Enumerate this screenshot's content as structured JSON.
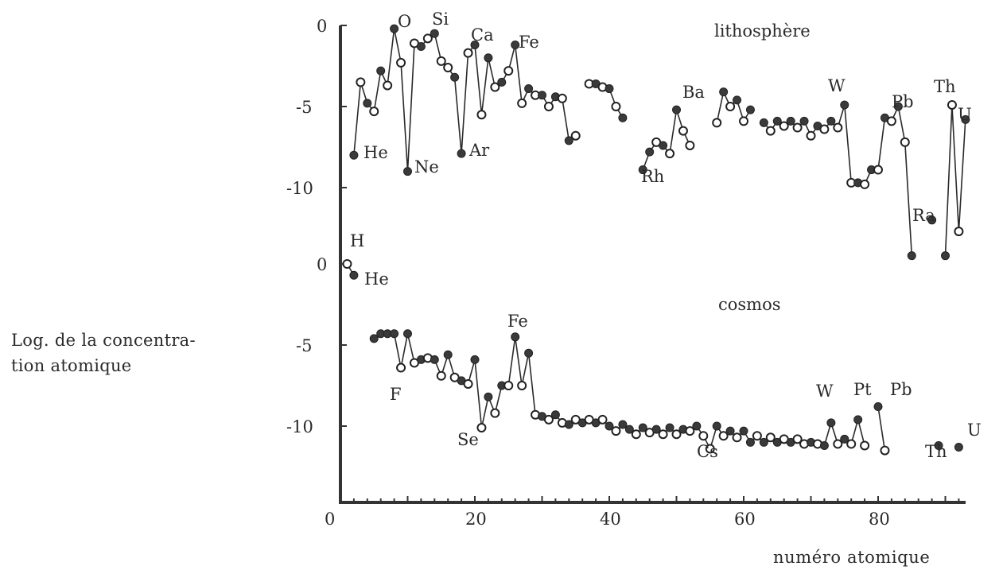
{
  "chart_data": {
    "type": "line",
    "xlabel": "numéro atomique",
    "ylabel_line1": "Log. de la concentra-",
    "ylabel_line2": "tion atomique",
    "xlim": [
      0,
      93
    ],
    "x_ticks": [
      0,
      20,
      40,
      60,
      80
    ],
    "panels": [
      {
        "name": "lithosphère",
        "ylim": [
          -10,
          0
        ],
        "y_ticks": [
          0,
          -5,
          -10
        ],
        "y_tick_labels": [
          "0",
          "-5",
          "-10"
        ],
        "points": [
          [
            2,
            -8.0,
            1
          ],
          [
            3,
            -3.5,
            0
          ],
          [
            4,
            -4.8,
            1
          ],
          [
            5,
            -5.3,
            0
          ],
          [
            6,
            -2.8,
            1
          ],
          [
            7,
            -3.7,
            0
          ],
          [
            8,
            -0.2,
            1
          ],
          [
            9,
            -2.3,
            0
          ],
          [
            10,
            -9.0,
            1
          ],
          [
            11,
            -1.1,
            0
          ],
          [
            12,
            -1.3,
            1
          ],
          [
            13,
            -0.8,
            0
          ],
          [
            14,
            -0.5,
            1
          ],
          [
            15,
            -2.2,
            0
          ],
          [
            16,
            -2.6,
            0
          ],
          [
            17,
            -3.2,
            1
          ],
          [
            18,
            -7.9,
            1
          ],
          [
            19,
            -1.7,
            0
          ],
          [
            20,
            -1.2,
            1
          ],
          [
            21,
            -5.5,
            0
          ],
          [
            22,
            -2.0,
            1
          ],
          [
            23,
            -3.8,
            0
          ],
          [
            24,
            -3.5,
            1
          ],
          [
            25,
            -2.8,
            0
          ],
          [
            26,
            -1.2,
            1
          ],
          [
            27,
            -4.8,
            0
          ],
          [
            28,
            -3.9,
            1
          ],
          [
            29,
            -4.3,
            0
          ],
          [
            30,
            -4.3,
            1
          ],
          [
            31,
            -5.0,
            0
          ],
          [
            32,
            -4.4,
            1
          ],
          [
            33,
            -4.5,
            0
          ],
          [
            34,
            -7.1,
            1
          ],
          [
            35,
            -6.8,
            0
          ],
          [
            37,
            -3.6,
            0
          ],
          [
            38,
            -3.6,
            1
          ],
          [
            39,
            -3.8,
            0
          ],
          [
            40,
            -3.9,
            1
          ],
          [
            41,
            -5.0,
            0
          ],
          [
            42,
            -5.7,
            1
          ],
          [
            45,
            -8.9,
            1
          ],
          [
            46,
            -7.8,
            1
          ],
          [
            47,
            -7.2,
            0
          ],
          [
            48,
            -7.4,
            1
          ],
          [
            49,
            -7.9,
            0
          ],
          [
            50,
            -5.2,
            1
          ],
          [
            51,
            -6.5,
            0
          ],
          [
            52,
            -7.4,
            0
          ],
          [
            56,
            -6.0,
            0
          ],
          [
            57,
            -4.1,
            1
          ],
          [
            58,
            -5.0,
            0
          ],
          [
            59,
            -4.6,
            1
          ],
          [
            60,
            -5.9,
            0
          ],
          [
            61,
            -5.2,
            1
          ],
          [
            63,
            -6.0,
            1
          ],
          [
            64,
            -6.5,
            0
          ],
          [
            65,
            -5.9,
            1
          ],
          [
            66,
            -6.2,
            0
          ],
          [
            67,
            -5.9,
            1
          ],
          [
            68,
            -6.3,
            0
          ],
          [
            69,
            -5.9,
            1
          ],
          [
            70,
            -6.8,
            0
          ],
          [
            71,
            -6.2,
            1
          ],
          [
            72,
            -6.4,
            0
          ],
          [
            73,
            -5.9,
            1
          ],
          [
            74,
            -6.3,
            0
          ],
          [
            75,
            -4.9,
            1
          ],
          [
            76,
            -9.7,
            0
          ],
          [
            77,
            -9.7,
            1
          ],
          [
            78,
            -9.8,
            0
          ],
          [
            79,
            -8.9,
            1
          ],
          [
            80,
            -8.9,
            0
          ],
          [
            81,
            -5.7,
            1
          ],
          [
            82,
            -5.9,
            0
          ],
          [
            83,
            -5.0,
            1
          ],
          [
            84,
            -7.2,
            0
          ],
          [
            85,
            -14.2,
            1
          ],
          [
            88,
            -12.0,
            1
          ],
          [
            90,
            -14.2,
            1
          ],
          [
            91,
            -4.9,
            0
          ],
          [
            92,
            -12.7,
            0
          ],
          [
            93,
            -5.8,
            1
          ]
        ],
        "gaps_after": [
          35,
          42,
          52,
          61,
          85,
          88
        ],
        "labels": [
          "O",
          "Si",
          "Ca",
          "Fe",
          "He",
          "Ne",
          "Ar",
          "Rh",
          "Ba",
          "W",
          "Pb",
          "Th",
          "U",
          "Ra"
        ]
      },
      {
        "name": "cosmos",
        "ylim": [
          -10,
          0
        ],
        "y_ticks": [
          0,
          -5,
          -10
        ],
        "y_tick_labels": [
          "0",
          "-5",
          "-10"
        ],
        "points": [
          [
            1,
            0.0,
            0
          ],
          [
            2,
            -0.7,
            1
          ],
          [
            5,
            -4.6,
            1
          ],
          [
            6,
            -4.3,
            1
          ],
          [
            7,
            -4.3,
            1
          ],
          [
            8,
            -4.3,
            1
          ],
          [
            9,
            -6.4,
            0
          ],
          [
            10,
            -4.3,
            1
          ],
          [
            11,
            -6.1,
            0
          ],
          [
            12,
            -5.9,
            1
          ],
          [
            13,
            -5.8,
            0
          ],
          [
            14,
            -5.9,
            1
          ],
          [
            15,
            -6.9,
            0
          ],
          [
            16,
            -5.6,
            1
          ],
          [
            17,
            -7.0,
            0
          ],
          [
            18,
            -7.2,
            1
          ],
          [
            19,
            -7.4,
            0
          ],
          [
            20,
            -5.9,
            1
          ],
          [
            21,
            -10.1,
            0
          ],
          [
            22,
            -8.2,
            1
          ],
          [
            23,
            -9.2,
            0
          ],
          [
            24,
            -7.5,
            1
          ],
          [
            25,
            -7.5,
            0
          ],
          [
            26,
            -4.5,
            1
          ],
          [
            27,
            -7.5,
            0
          ],
          [
            28,
            -5.5,
            1
          ],
          [
            29,
            -9.3,
            0
          ],
          [
            30,
            -9.4,
            1
          ],
          [
            31,
            -9.6,
            0
          ],
          [
            32,
            -9.3,
            1
          ],
          [
            33,
            -9.8,
            0
          ],
          [
            34,
            -9.9,
            1
          ],
          [
            35,
            -9.6,
            0
          ],
          [
            36,
            -9.8,
            1
          ],
          [
            37,
            -9.6,
            0
          ],
          [
            38,
            -9.8,
            1
          ],
          [
            39,
            -9.6,
            0
          ],
          [
            40,
            -10.0,
            1
          ],
          [
            41,
            -10.3,
            0
          ],
          [
            42,
            -9.9,
            1
          ]
        ],
        "gaps_after": [
          2
        ],
        "labels": [
          "H",
          "He",
          "F",
          "Se",
          "Fe",
          "Cs",
          "W",
          "Pt",
          "Pb",
          "Th",
          "U"
        ]
      }
    ],
    "extra_cosmos": [
      [
        43,
        -10.2,
        1
      ],
      [
        44,
        -10.5,
        0
      ],
      [
        45,
        -10.1,
        1
      ],
      [
        46,
        -10.4,
        0
      ],
      [
        47,
        -10.2,
        1
      ],
      [
        48,
        -10.5,
        0
      ],
      [
        49,
        -10.1,
        1
      ],
      [
        50,
        -10.5,
        0
      ],
      [
        51,
        -10.2,
        1
      ],
      [
        52,
        -10.3,
        0
      ],
      [
        53,
        -10.0,
        1
      ],
      [
        54,
        -10.6,
        0
      ],
      [
        55,
        -11.4,
        0
      ],
      [
        56,
        -10.0,
        1
      ],
      [
        57,
        -10.6,
        0
      ],
      [
        58,
        -10.3,
        1
      ],
      [
        59,
        -10.7,
        0
      ],
      [
        60,
        -10.3,
        1
      ],
      [
        61,
        -11.0,
        1
      ],
      [
        62,
        -10.6,
        0
      ],
      [
        63,
        -11.0,
        1
      ],
      [
        64,
        -10.7,
        0
      ],
      [
        65,
        -11.0,
        1
      ],
      [
        66,
        -10.8,
        0
      ],
      [
        67,
        -11.0,
        1
      ],
      [
        68,
        -10.8,
        0
      ],
      [
        69,
        -11.1,
        0
      ],
      [
        70,
        -11.0,
        1
      ],
      [
        71,
        -11.1,
        0
      ],
      [
        72,
        -11.2,
        1
      ],
      [
        73,
        -9.8,
        1
      ],
      [
        74,
        -11.1,
        0
      ],
      [
        75,
        -10.8,
        1
      ],
      [
        76,
        -11.1,
        0
      ],
      [
        77,
        -9.6,
        1
      ],
      [
        78,
        -11.2,
        0
      ],
      [
        80,
        -8.8,
        1
      ],
      [
        81,
        -11.5,
        0
      ],
      [
        89,
        -11.2,
        1
      ],
      [
        92,
        -11.3,
        1
      ]
    ],
    "extra_cosmos_gaps_after": [
      78,
      81,
      89
    ]
  },
  "annotations": {
    "lithosphere_title": "lithosphère",
    "cosmos_title": "cosmos",
    "litho": {
      "O": "O",
      "Si": "Si",
      "Ca": "Ca",
      "Fe": "Fe",
      "He": "He",
      "Ne": "Ne",
      "Ar": "Ar",
      "Rh": "Rh",
      "Ba": "Ba",
      "W": "W",
      "Pb": "Pb",
      "Th": "Th",
      "U": "U",
      "Ra": "Ra"
    },
    "cosmos": {
      "H": "H",
      "He": "He",
      "F": "F",
      "Se": "Se",
      "Fe": "Fe",
      "Cs": "Cs",
      "W": "W",
      "Pt": "Pt",
      "Pb": "Pb",
      "Th": "Th",
      "U": "U"
    },
    "y_ticks_litho": [
      "0",
      "-5",
      "-10"
    ],
    "y_ticks_cosmos": [
      "0",
      "-5",
      "-10"
    ],
    "x_tick_labels": [
      "0",
      "20",
      "40",
      "60",
      "80"
    ]
  }
}
